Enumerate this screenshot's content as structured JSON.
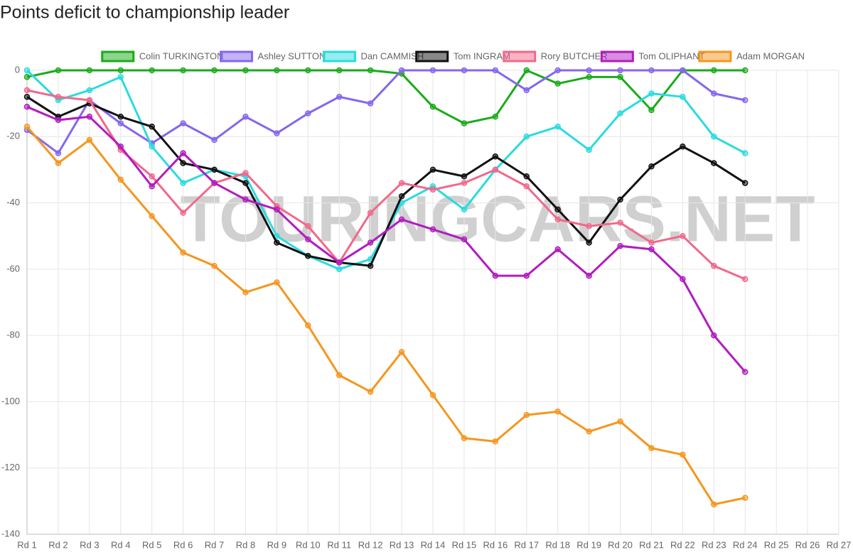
{
  "chart_data": {
    "type": "line",
    "title": "Points deficit to championship leader",
    "watermark": "TOURINGCARS.NET",
    "categories": [
      "Rd 1",
      "Rd 2",
      "Rd 3",
      "Rd 4",
      "Rd 5",
      "Rd 6",
      "Rd 7",
      "Rd 8",
      "Rd 9",
      "Rd 10",
      "Rd 11",
      "Rd 12",
      "Rd 13",
      "Rd 14",
      "Rd 15",
      "Rd 16",
      "Rd 17",
      "Rd 18",
      "Rd 19",
      "Rd 20",
      "Rd 21",
      "Rd 22",
      "Rd 23",
      "Rd 24",
      "Rd 25",
      "Rd 26",
      "Rd 27"
    ],
    "ylim": [
      -140,
      0
    ],
    "yticks": [
      0,
      -20,
      -40,
      -60,
      -80,
      -100,
      -120,
      -140
    ],
    "grid": true,
    "legend": "top",
    "series": [
      {
        "name": "Colin TURKINGTON",
        "color": "#1aab1a",
        "values": [
          -2,
          0,
          0,
          0,
          0,
          0,
          0,
          0,
          0,
          0,
          0,
          0,
          -1,
          -11,
          -16,
          -14,
          0,
          -4,
          -2,
          -2,
          -12,
          0,
          0,
          0,
          null,
          null,
          null
        ]
      },
      {
        "name": "Ashley SUTTON",
        "color": "#8566ee",
        "values": [
          -18,
          -25,
          -9,
          -16,
          -22,
          -16,
          -21,
          -14,
          -19,
          -13,
          -8,
          -10,
          0,
          0,
          0,
          0,
          -6,
          0,
          0,
          0,
          0,
          0,
          -7,
          -9,
          null,
          null,
          null
        ]
      },
      {
        "name": "Dan CAMMISH",
        "color": "#2adbe0",
        "values": [
          0,
          -9,
          -6,
          -2,
          -23,
          -34,
          -30,
          -32,
          -50,
          -56,
          -60,
          -57,
          -40,
          -35,
          -42,
          -30,
          -20,
          -17,
          -24,
          -13,
          -7,
          -8,
          -20,
          -25,
          null,
          null,
          null
        ]
      },
      {
        "name": "Tom INGRAM",
        "color": "#111111",
        "values": [
          -8,
          -14,
          -10,
          -14,
          -17,
          -28,
          -30,
          -34,
          -52,
          -56,
          -58,
          -59,
          -38,
          -30,
          -32,
          -26,
          -32,
          -42,
          -52,
          -39,
          -29,
          -23,
          -28,
          -34,
          null,
          null,
          null
        ]
      },
      {
        "name": "Rory BUTCHER",
        "color": "#f2688a",
        "values": [
          -6,
          -8,
          -9,
          -24,
          -32,
          -43,
          -34,
          -31,
          -41,
          -47,
          -58,
          -43,
          -34,
          -36,
          -34,
          -30,
          -35,
          -45,
          -47,
          -46,
          -52,
          -50,
          -59,
          -63,
          null,
          null,
          null
        ]
      },
      {
        "name": "Tom OLIPHANT",
        "color": "#b21cc0",
        "values": [
          -11,
          -15,
          -14,
          -23,
          -35,
          -25,
          -34,
          -39,
          -42,
          -51,
          -58,
          -52,
          -45,
          -48,
          -51,
          -62,
          -62,
          -54,
          -62,
          -53,
          -54,
          -63,
          -80,
          -91,
          null,
          null,
          null
        ]
      },
      {
        "name": "Adam MORGAN",
        "color": "#f5961e",
        "values": [
          -17,
          -28,
          -21,
          -33,
          -44,
          -55,
          -59,
          -67,
          -64,
          -77,
          -92,
          -97,
          -85,
          -98,
          -111,
          -112,
          -104,
          -103,
          -109,
          -106,
          -114,
          -116,
          -131,
          -129,
          null,
          null,
          null
        ]
      }
    ]
  }
}
